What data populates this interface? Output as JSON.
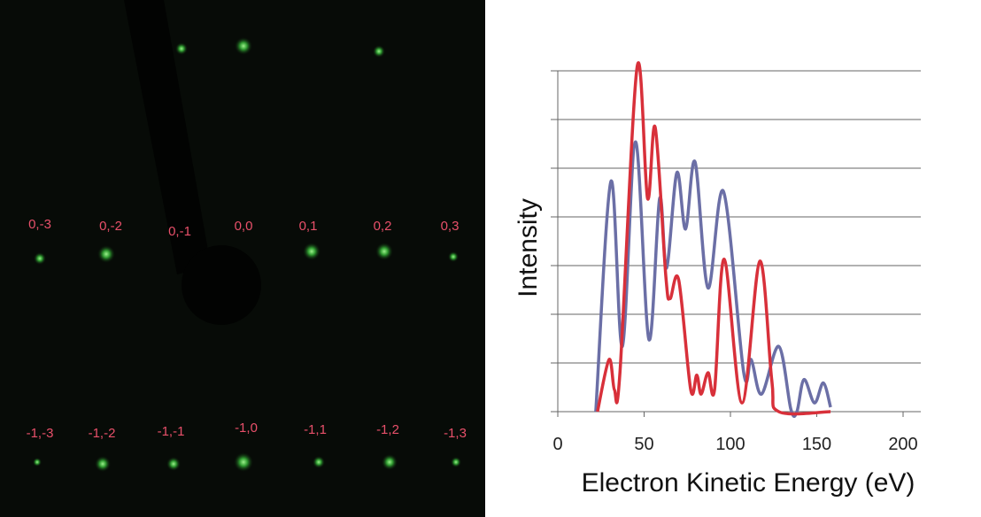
{
  "leed_pattern": {
    "rows": [
      [
        "0,-3",
        "0,-2",
        "0,-1",
        "0,0",
        "0,1",
        "0,2",
        "0,3"
      ],
      [
        "-1,-3",
        "-1,-2",
        "-1,-1",
        "-1,0",
        "-1,1",
        "-1,2",
        "-1,3"
      ]
    ]
  },
  "chart_data": {
    "type": "line",
    "x_label": "Electron Kinetic Energy (eV)",
    "y_label": "Intensity",
    "xlim": [
      0,
      200
    ],
    "xticks": [
      0,
      50,
      100,
      150,
      200
    ],
    "ylim": [
      0,
      7.2
    ],
    "yticks": [
      0,
      1,
      2,
      3,
      4,
      5,
      6,
      7
    ],
    "grid": true,
    "series": [
      {
        "color": "#6b6fa6",
        "x": [
          22,
          30.8,
          37.4,
          45,
          52.8,
          59,
          63,
          69,
          74,
          79.5,
          87,
          96,
          107.7,
          112,
          118,
          128,
          135,
          138.5,
          142.6,
          148.7,
          153.8,
          158
        ],
        "values": [
          0,
          4.73,
          1.34,
          5.54,
          1.48,
          4.38,
          2.95,
          4.91,
          3.75,
          5.13,
          2.54,
          4.52,
          0.8,
          1.07,
          0.36,
          1.34,
          0.05,
          0,
          0.66,
          0.18,
          0.59,
          0.09
        ]
      },
      {
        "color": "#d8303a",
        "x": [
          23,
          29.7,
          32.8,
          36,
          46,
          52,
          56.4,
          62.6,
          65,
          70,
          77,
          80.5,
          83,
          87,
          90.8,
          96.4,
          106.7,
          117,
          124,
          128,
          158
        ],
        "values": [
          0,
          1.07,
          0.45,
          0.8,
          7.09,
          4.38,
          5.84,
          2.77,
          2.32,
          2.71,
          0.45,
          0.75,
          0.36,
          0.8,
          0.45,
          3.13,
          0.18,
          3.09,
          0.63,
          0,
          0
        ]
      }
    ]
  }
}
